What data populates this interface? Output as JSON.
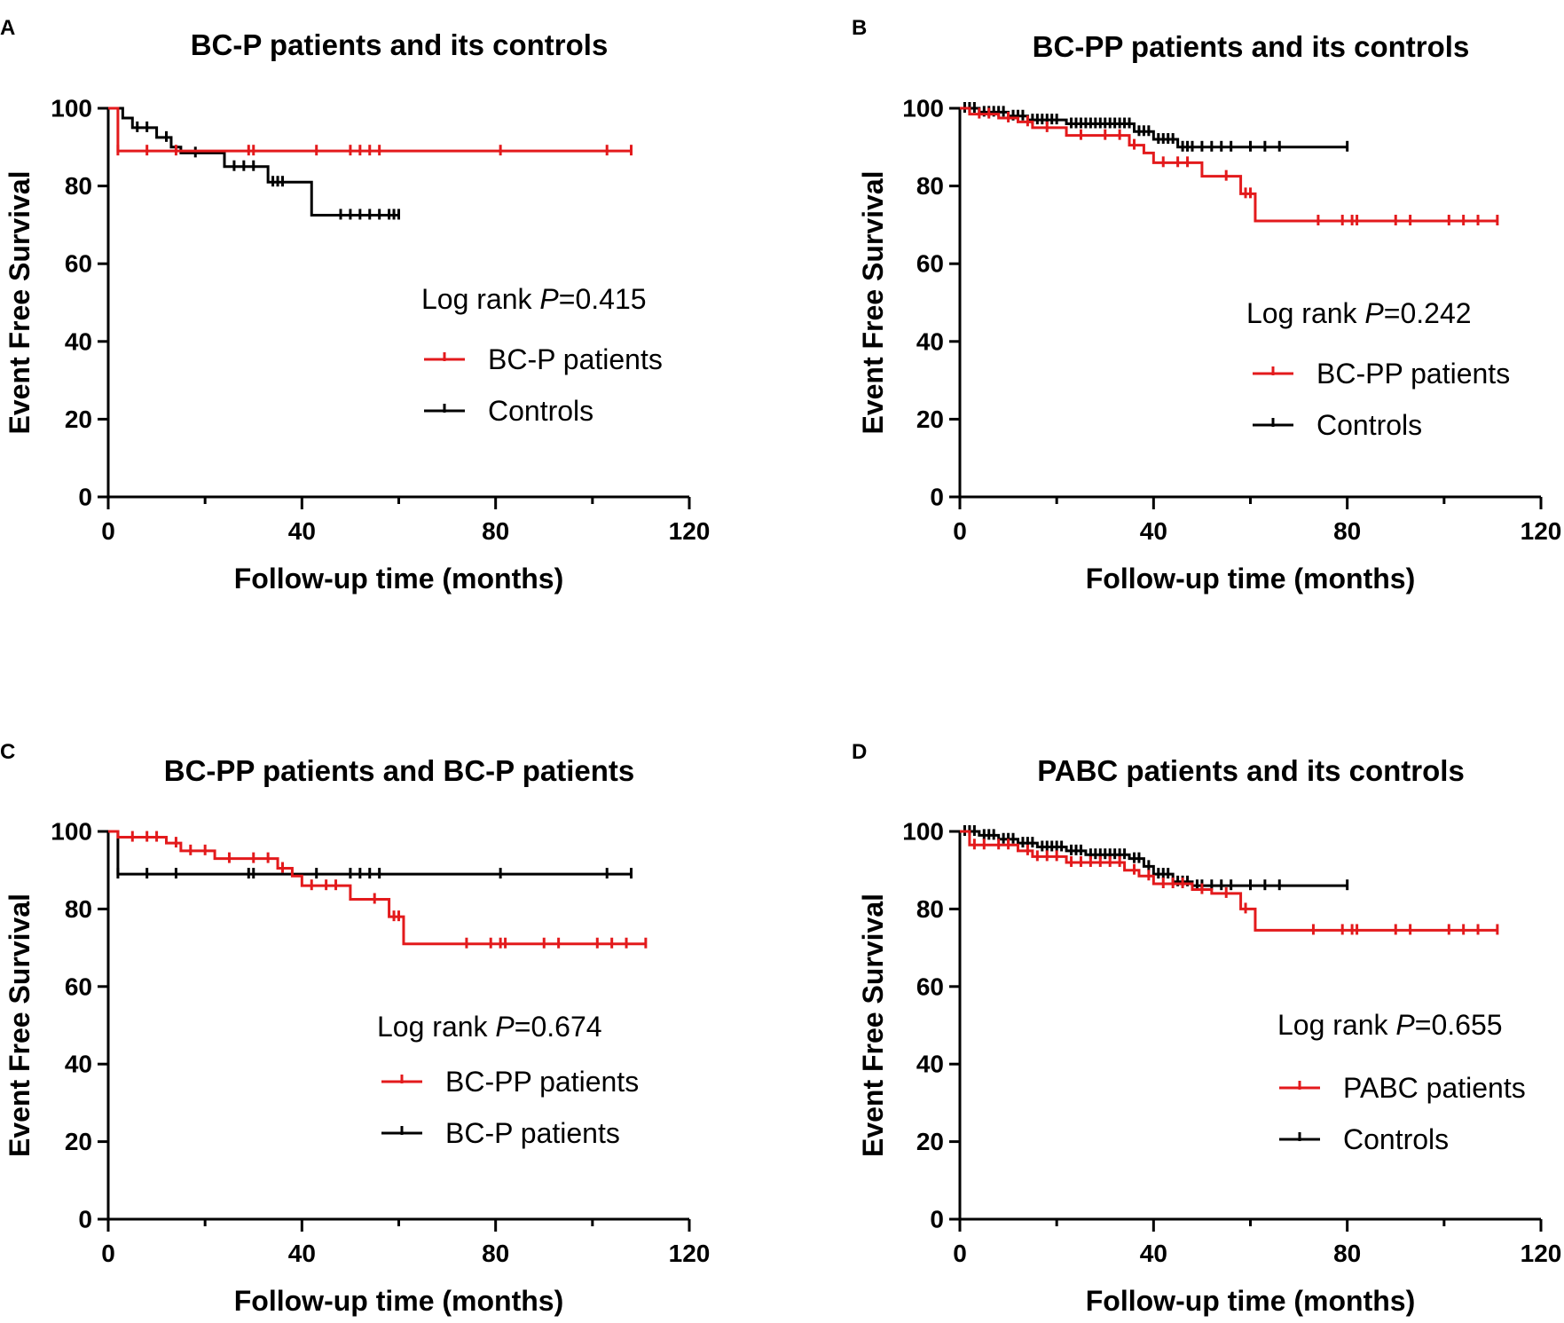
{
  "chart_data": [
    {
      "type": "line",
      "panel": "A",
      "title": "BC-P patients and its controls",
      "xlabel": "Follow-up time (months)",
      "ylabel": "Event Free Survival",
      "xlim": [
        0,
        120
      ],
      "ylim": [
        0,
        100
      ],
      "x_ticks": [
        "0",
        "40",
        "80",
        "120"
      ],
      "y_ticks": [
        "0",
        "20",
        "40",
        "60",
        "80",
        "100"
      ],
      "statistic_label": "Log rank ",
      "statistic_italic": "P",
      "statistic_value": "=0.415",
      "series": [
        {
          "name": "BC-P patients",
          "color": "#e31a1c",
          "steps": [
            [
              0,
              100
            ],
            [
              2,
              89
            ],
            [
              108,
              89
            ]
          ],
          "censored": [
            2,
            8,
            14,
            29,
            30,
            43,
            50,
            52,
            54,
            56,
            81,
            103,
            108
          ]
        },
        {
          "name": "Controls",
          "color": "#000000",
          "steps": [
            [
              0,
              100
            ],
            [
              3,
              97.5
            ],
            [
              5,
              95
            ],
            [
              10,
              92.5
            ],
            [
              13,
              90
            ],
            [
              15,
              88.5
            ],
            [
              24,
              85
            ],
            [
              33,
              81
            ],
            [
              42,
              72.5
            ],
            [
              60,
              72.5
            ]
          ],
          "censored": [
            6,
            8,
            12,
            18,
            26,
            28,
            30,
            34,
            35,
            36,
            48,
            50,
            52,
            54,
            56,
            58,
            59,
            60
          ]
        }
      ]
    },
    {
      "type": "line",
      "panel": "B",
      "title": "BC-PP patients and its controls",
      "xlabel": "Follow-up time (months)",
      "ylabel": "Event Free Survival",
      "xlim": [
        0,
        120
      ],
      "ylim": [
        0,
        100
      ],
      "x_ticks": [
        "0",
        "40",
        "80",
        "120"
      ],
      "y_ticks": [
        "0",
        "20",
        "40",
        "60",
        "80",
        "100"
      ],
      "statistic_label": "Log rank ",
      "statistic_italic": "P",
      "statistic_value": "=0.242",
      "series": [
        {
          "name": "BC-PP patients",
          "color": "#e31a1c",
          "steps": [
            [
              0,
              100
            ],
            [
              2,
              98.5
            ],
            [
              8,
              97.5
            ],
            [
              12,
              96.5
            ],
            [
              15,
              95
            ],
            [
              22,
              93
            ],
            [
              35,
              90.5
            ],
            [
              38,
              88.5
            ],
            [
              40,
              86
            ],
            [
              50,
              82.5
            ],
            [
              58,
              78
            ],
            [
              61,
              71
            ],
            [
              111,
              71
            ]
          ],
          "censored": [
            4,
            6,
            10,
            14,
            18,
            25,
            30,
            33,
            36,
            42,
            45,
            47,
            55,
            59,
            60,
            74,
            79,
            81,
            82,
            90,
            93,
            101,
            104,
            107,
            111
          ]
        },
        {
          "name": "Controls",
          "color": "#000000",
          "steps": [
            [
              0,
              100
            ],
            [
              4,
              99
            ],
            [
              10,
              98
            ],
            [
              14,
              97
            ],
            [
              22,
              96
            ],
            [
              36,
              94
            ],
            [
              40,
              92
            ],
            [
              45,
              90
            ],
            [
              80,
              90
            ]
          ],
          "censored": [
            1,
            2,
            3,
            5,
            6,
            7,
            8,
            9,
            11,
            12,
            13,
            15,
            16,
            17,
            18,
            19,
            20,
            23,
            24,
            25,
            26,
            27,
            28,
            29,
            30,
            31,
            32,
            33,
            34,
            35,
            37,
            38,
            39,
            41,
            42,
            43,
            44,
            46,
            47,
            48,
            50,
            52,
            54,
            56,
            60,
            63,
            66,
            80
          ]
        }
      ]
    },
    {
      "type": "line",
      "panel": "C",
      "title": "BC-PP patients and BC-P patients",
      "xlabel": "Follow-up time (months)",
      "ylabel": "Event Free Survival",
      "xlim": [
        0,
        120
      ],
      "ylim": [
        0,
        100
      ],
      "x_ticks": [
        "0",
        "40",
        "80",
        "120"
      ],
      "y_ticks": [
        "0",
        "20",
        "40",
        "60",
        "80",
        "100"
      ],
      "statistic_label": "Log rank ",
      "statistic_italic": "P",
      "statistic_value": "=0.674",
      "series": [
        {
          "name": "BC-PP patients",
          "color": "#e31a1c",
          "steps": [
            [
              0,
              100
            ],
            [
              2,
              98.5
            ],
            [
              12,
              97
            ],
            [
              15,
              95
            ],
            [
              22,
              93
            ],
            [
              35,
              90.5
            ],
            [
              38,
              88.5
            ],
            [
              40,
              86
            ],
            [
              50,
              82.5
            ],
            [
              58,
              78
            ],
            [
              61,
              71
            ],
            [
              111,
              71
            ]
          ],
          "censored": [
            5,
            8,
            10,
            14,
            17,
            20,
            25,
            30,
            33,
            36,
            42,
            45,
            47,
            55,
            59,
            60,
            74,
            79,
            81,
            82,
            90,
            93,
            101,
            104,
            107,
            111
          ]
        },
        {
          "name": "BC-P patients",
          "color": "#000000",
          "steps": [
            [
              0,
              100
            ],
            [
              2,
              89
            ],
            [
              108,
              89
            ]
          ],
          "censored": [
            2,
            8,
            14,
            29,
            30,
            43,
            50,
            52,
            54,
            56,
            81,
            103,
            108
          ]
        }
      ]
    },
    {
      "type": "line",
      "panel": "D",
      "title": "PABC patients and its controls",
      "xlabel": "Follow-up time (months)",
      "ylabel": "Event Free Survival",
      "xlim": [
        0,
        120
      ],
      "ylim": [
        0,
        100
      ],
      "x_ticks": [
        "0",
        "40",
        "80",
        "120"
      ],
      "y_ticks": [
        "0",
        "20",
        "40",
        "60",
        "80",
        "100"
      ],
      "statistic_label": "Log rank ",
      "statistic_italic": "P",
      "statistic_value": "=0.655",
      "series": [
        {
          "name": "PABC patients",
          "color": "#e31a1c",
          "steps": [
            [
              0,
              100
            ],
            [
              2,
              96.5
            ],
            [
              12,
              95
            ],
            [
              15,
              93.5
            ],
            [
              22,
              92
            ],
            [
              34,
              90
            ],
            [
              37,
              88.5
            ],
            [
              40,
              86.5
            ],
            [
              48,
              85
            ],
            [
              52,
              84
            ],
            [
              58,
              80
            ],
            [
              61,
              74.5
            ],
            [
              111,
              74.5
            ]
          ],
          "censored": [
            3,
            5,
            8,
            10,
            14,
            16,
            18,
            20,
            23,
            25,
            27,
            29,
            31,
            33,
            36,
            39,
            42,
            44,
            46,
            50,
            55,
            59,
            73,
            79,
            81,
            82,
            90,
            93,
            101,
            104,
            107,
            111
          ]
        },
        {
          "name": "Controls",
          "color": "#000000",
          "steps": [
            [
              0,
              100
            ],
            [
              4,
              99
            ],
            [
              8,
              98
            ],
            [
              12,
              97
            ],
            [
              16,
              96
            ],
            [
              22,
              95
            ],
            [
              26,
              94
            ],
            [
              35,
              93
            ],
            [
              38,
              91
            ],
            [
              40,
              89
            ],
            [
              44,
              87
            ],
            [
              48,
              86
            ],
            [
              80,
              86
            ]
          ],
          "censored": [
            1,
            2,
            3,
            5,
            6,
            7,
            9,
            10,
            11,
            13,
            14,
            15,
            17,
            18,
            19,
            20,
            21,
            23,
            24,
            25,
            27,
            28,
            29,
            30,
            31,
            32,
            33,
            34,
            36,
            37,
            39,
            41,
            42,
            43,
            45,
            46,
            47,
            49,
            50,
            52,
            54,
            56,
            60,
            63,
            66,
            80
          ]
        }
      ]
    }
  ]
}
